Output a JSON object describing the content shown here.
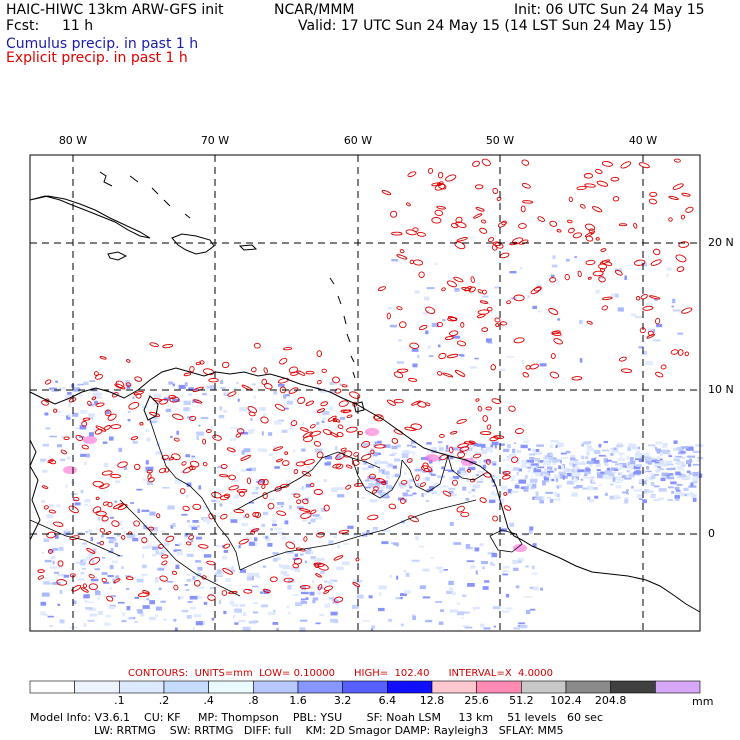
{
  "header": {
    "model": "HAIC-HIWC 13km ARW-GFS init",
    "org": "NCAR/MMM",
    "init": "Init: 06 UTC Sun 24 May 15",
    "fcst_label": "Fcst:",
    "fcst_value": "11 h",
    "valid": "Valid: 17 UTC Sun 24 May 15 (14 LST Sun 24 May 15)",
    "cumulus": "Cumulus precip. in past 1 h",
    "explicit": "Explicit precip. in past 1 h"
  },
  "colors": {
    "cumulus_text": "#1a1aa8",
    "explicit_text": "#e00000",
    "contour_red": "#e00000",
    "grid": "#000000",
    "coast": "#000000"
  },
  "map": {
    "lon_labels": [
      "80 W",
      "70 W",
      "60 W",
      "50 W",
      "40 W"
    ],
    "lat_labels": [
      "20 N",
      "10 N",
      "0"
    ]
  },
  "contours": {
    "text": "CONTOURS:  UNITS=mm  LOW= 0.10000      HIGH=  102.40      INTERVAL=X  4.0000"
  },
  "colorbar": {
    "labels": [
      ".1",
      ".2",
      ".4",
      ".8",
      "1.6",
      "3.2",
      "6.4",
      "12.8",
      "25.6",
      "51.2",
      "102.4",
      "204.8"
    ],
    "unit": "mm",
    "fill_colors": [
      "#ffffff",
      "#eef4ff",
      "#dde9ff",
      "#c6dcff",
      "#eafaff",
      "#b8c8ff",
      "#8896ff",
      "#5760ff",
      "#1010ff",
      "#ffc8d0",
      "#ff8ab4",
      "#c8c8c8",
      "#8a8a8a",
      "#404040",
      "#d8a8f8"
    ]
  },
  "footer": {
    "line1": "Model Info: V3.6.1    CU: KF     MP: Thompson    PBL: YSU       SF: Noah LSM     13 km    51 levels   60 sec",
    "line2": "LW: RRTMG    SW: RRTMG   DIFF: full    KM: 2D Smagor DAMP: Rayleigh3   SFLAY: MM5"
  }
}
